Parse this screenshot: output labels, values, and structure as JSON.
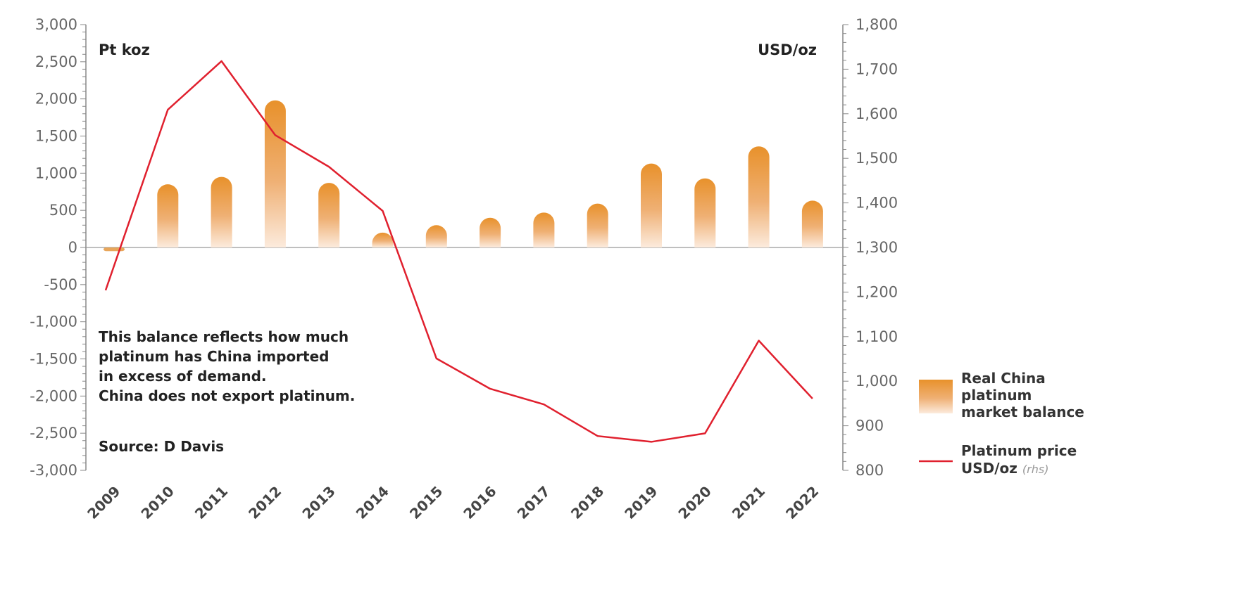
{
  "chart_data": {
    "type": "bar+line",
    "categories": [
      "2009",
      "2010",
      "2011",
      "2012",
      "2013",
      "2014",
      "2015",
      "2016",
      "2017",
      "2018",
      "2019",
      "2020",
      "2021",
      "2022"
    ],
    "series": [
      {
        "name": "Real China platinum market balance",
        "type": "bar",
        "axis": "left",
        "values": [
          -50,
          850,
          950,
          1980,
          870,
          200,
          300,
          400,
          470,
          590,
          1130,
          930,
          1360,
          630
        ]
      },
      {
        "name": "Platinum price USD/oz (rhs)",
        "type": "line",
        "axis": "right",
        "values": [
          1204,
          1609,
          1718,
          1552,
          1481,
          1382,
          1051,
          983,
          948,
          877,
          864,
          883,
          1091,
          961
        ]
      }
    ],
    "left_axis": {
      "label": "Pt koz",
      "ylim": [
        -3000,
        3000
      ],
      "ticks": [
        "3,000",
        "2,500",
        "2,000",
        "1,500",
        "1,000",
        "500",
        "0",
        "-500",
        "-1,000",
        "-1,500",
        "-2,000",
        "-2,500",
        "-3,000"
      ]
    },
    "right_axis": {
      "label": "USD/oz",
      "ylim": [
        800,
        1800
      ],
      "ticks": [
        "1,800",
        "1,700",
        "1,600",
        "1,500",
        "1,400",
        "1,300",
        "1,200",
        "1,100",
        "1,000",
        "900",
        "800"
      ]
    },
    "annotation": [
      "This balance reflects how much",
      "platinum has China imported",
      "in excess of demand.",
      "China does not export platinum."
    ],
    "source": "Source: D Davis",
    "legend": {
      "position": "bottom-right",
      "bar_label": [
        "Real China",
        "platinum",
        "market balance"
      ],
      "line_label": [
        "Platinum price",
        "USD/oz"
      ],
      "line_suffix": "(rhs)"
    },
    "colors": {
      "bar": "#E8912B",
      "line": "#E0202E",
      "axis": "#888888"
    }
  }
}
